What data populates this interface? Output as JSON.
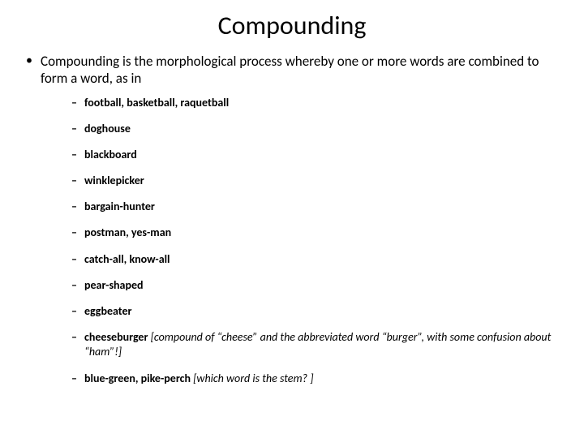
{
  "title": "Compounding",
  "intro": "Compounding is the morphological process whereby  one or more words are combined to form a word, as in",
  "items": [
    {
      "text": "football, basketball, raquetball"
    },
    {
      "text": "doghouse"
    },
    {
      "text": "blackboard"
    },
    {
      "text": "winklepicker"
    },
    {
      "text": "bargain-hunter"
    },
    {
      "text": "postman,    yes-man"
    },
    {
      "text": "catch-all,    know-all"
    },
    {
      "text": "pear-shaped"
    },
    {
      "text": "eggbeater"
    },
    {
      "text": "cheeseburger ",
      "note": "[compound of “cheese” and the abbreviated word “burger”, with some confusion about “ham”!]"
    },
    {
      "text": "blue-green, pike-perch    ",
      "note": "[which word is the stem? ]"
    }
  ]
}
